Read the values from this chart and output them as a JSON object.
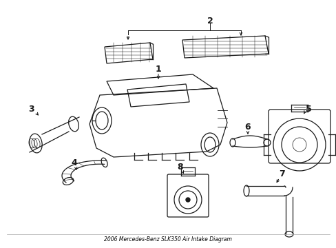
{
  "title": "2006 Mercedes-Benz SLK350 Air Intake Diagram",
  "background_color": "#ffffff",
  "line_color": "#1a1a1a",
  "label_color": "#000000",
  "figsize": [
    4.89,
    3.6
  ],
  "dpi": 100
}
